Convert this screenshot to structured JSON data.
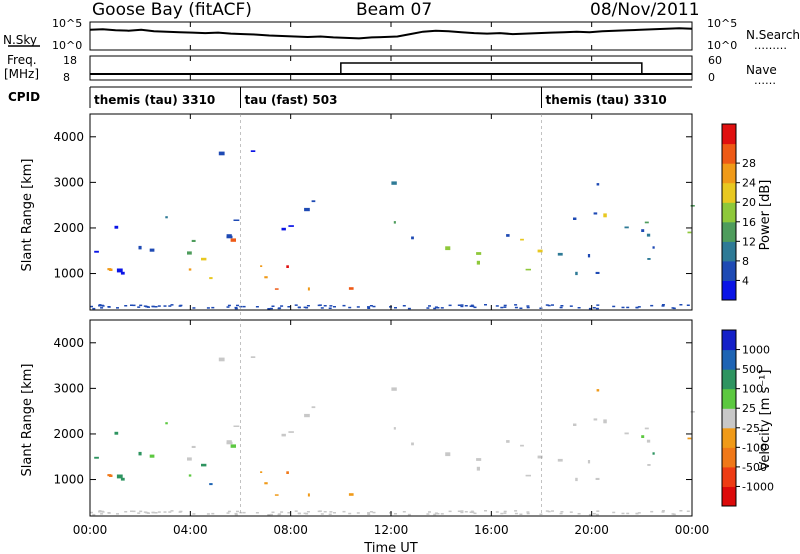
{
  "header": {
    "station": "Goose Bay (fitACF)",
    "beam": "Beam 07",
    "date": "08/Nov/2011"
  },
  "panels": {
    "nsky": {
      "left_label": "N.Sky",
      "right_label": "N.Search",
      "right_dots": "………",
      "tick_top": "10^5",
      "tick_bottom": "10^0",
      "values": [
        3.8,
        3.9,
        3.7,
        3.6,
        3.8,
        3.5,
        3.4,
        3.3,
        3.2,
        3.1,
        3.2,
        3.0,
        2.9,
        2.8,
        2.6,
        2.5,
        2.4,
        2.3,
        2.4,
        2.2,
        2.1,
        2.0,
        2.2,
        2.3,
        2.4,
        2.9,
        3.4,
        3.6,
        3.5,
        3.3,
        3.1,
        3.0,
        3.1,
        2.9,
        3.0,
        3.1,
        3.2,
        3.3,
        3.4,
        3.3,
        3.5,
        3.6,
        3.7,
        3.8,
        3.9,
        4.0,
        4.1,
        4.0
      ]
    },
    "freq": {
      "left_label": "Freq.",
      "left_unit": "[MHz]",
      "right_label": "Nave",
      "right_dots": "……",
      "tick_left_top": "18",
      "tick_left_bottom": "8",
      "tick_right_top": "60",
      "tick_right_bottom": "0",
      "nave_high_start_hour": 10,
      "nave_high_end_hour": 22
    },
    "cpid": {
      "label": "CPID",
      "segments": [
        {
          "text": "themis (tau) 3310",
          "start_hour": 0
        },
        {
          "text": "tau (fast) 503",
          "start_hour": 6
        },
        {
          "text": "themis (tau) 3310",
          "start_hour": 18
        }
      ]
    }
  },
  "x_axis": {
    "label": "Time UT",
    "ticks": [
      "00:00",
      "04:00",
      "08:00",
      "12:00",
      "16:00",
      "20:00",
      "00:00"
    ],
    "range_hours": [
      0,
      24
    ]
  },
  "chart_data": [
    {
      "type": "heatmap",
      "ylabel": "Slant Range [km]",
      "yticks": [
        "1000",
        "2000",
        "3000",
        "4000"
      ],
      "ylim": [
        200,
        4500
      ],
      "colorbar": {
        "label": "Power [dB]",
        "ticks": [
          "4",
          "8",
          "12",
          "16",
          "20",
          "24",
          "28"
        ],
        "colors": [
          "#0a14e6",
          "#1e4ab4",
          "#2e7a96",
          "#4e9c5c",
          "#8ec83a",
          "#e8c820",
          "#f09a18",
          "#ee5a16",
          "#e01010"
        ]
      }
    },
    {
      "type": "heatmap",
      "ylabel": "Slant Range [km]",
      "yticks": [
        "1000",
        "2000",
        "3000",
        "4000"
      ],
      "ylim": [
        200,
        4500
      ],
      "colorbar": {
        "label": "Velocity [m s⁻¹]",
        "ticks": [
          "1000",
          "500",
          "100",
          "25",
          "-25",
          "-100",
          "-500",
          "-1000"
        ],
        "colors": [
          "#1420c8",
          "#1e64b4",
          "#2e9460",
          "#5cc840",
          "#c8c8c8",
          "#f09a18",
          "#f07818",
          "#ee3c14",
          "#dc0a0a"
        ]
      }
    }
  ]
}
